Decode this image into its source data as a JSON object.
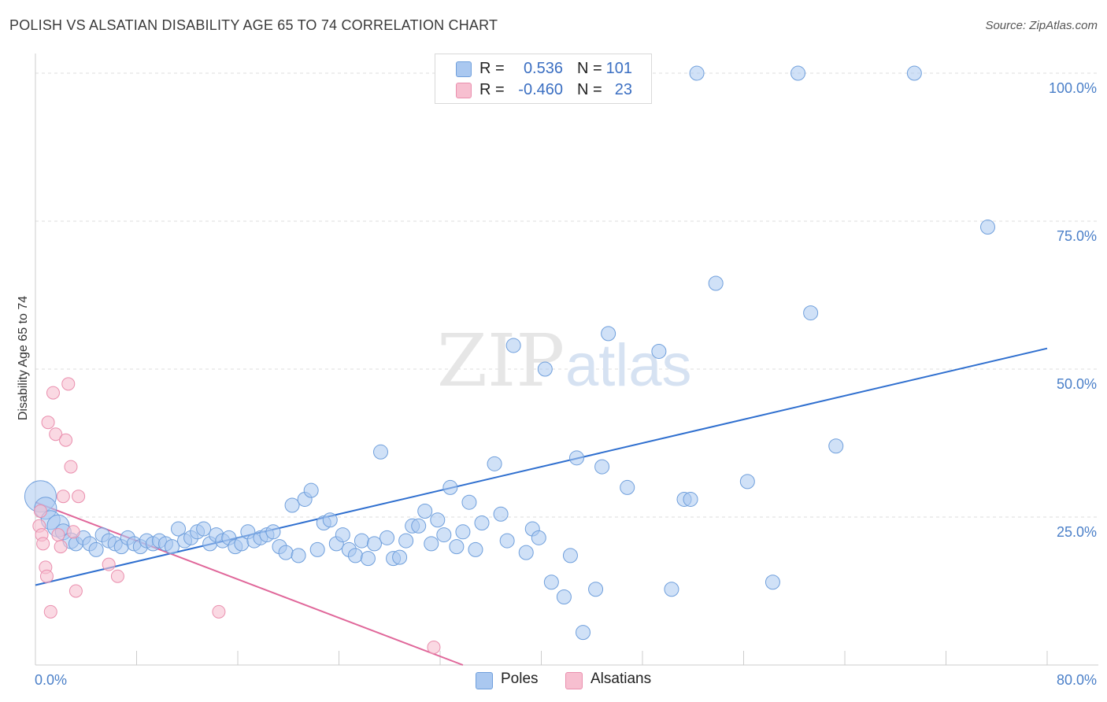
{
  "title": "POLISH VS ALSATIAN DISABILITY AGE 65 TO 74 CORRELATION CHART",
  "source": "Source: ZipAtlas.com",
  "watermark": {
    "zip": "ZIP",
    "atlas": "atlas"
  },
  "colors": {
    "poles_fill": "#aac8f0",
    "poles_stroke": "#6f9fdc",
    "poles_line": "#2f6fcf",
    "alsatians_fill": "#f7bfd0",
    "alsatians_stroke": "#ea8fae",
    "alsatians_line": "#e0679a",
    "tick_text": "#4a7fc8"
  },
  "legend": {
    "rows": [
      {
        "r_label": "R =",
        "r_value": "0.536",
        "n_label": "N =",
        "n_value": "101"
      },
      {
        "r_label": "R =",
        "r_value": "-0.460",
        "n_label": "N =",
        "n_value": "23"
      }
    ]
  },
  "bottom_legend": {
    "poles": "Poles",
    "alsatians": "Alsatians"
  },
  "chart_data": {
    "type": "scatter",
    "title": "POLISH VS ALSATIAN DISABILITY AGE 65 TO 74 CORRELATION CHART",
    "xlabel": "",
    "ylabel": "Disability Age 65 to 74",
    "xlim": [
      0,
      80
    ],
    "ylim": [
      0,
      102
    ],
    "x_tick_labels": [
      {
        "value": 0,
        "label": "0.0%"
      },
      {
        "value": 80,
        "label": "80.0%"
      }
    ],
    "y_tick_labels": [
      {
        "value": 25,
        "label": "25.0%"
      },
      {
        "value": 50,
        "label": "50.0%"
      },
      {
        "value": 75,
        "label": "75.0%"
      },
      {
        "value": 100,
        "label": "100.0%"
      }
    ],
    "grid": true,
    "legend_position": "top-center",
    "series": [
      {
        "name": "Poles",
        "r": 0.536,
        "n": 101,
        "trend": {
          "x": [
            0,
            80
          ],
          "y": [
            13.5,
            53.5
          ]
        },
        "points": [
          {
            "x": 0.4,
            "y": 28.5,
            "s": 20
          },
          {
            "x": 0.8,
            "y": 26.5,
            "s": 14
          },
          {
            "x": 1.2,
            "y": 24.5,
            "s": 12
          },
          {
            "x": 1.8,
            "y": 23.5,
            "s": 14
          },
          {
            "x": 2.2,
            "y": 22.5,
            "s": 10
          },
          {
            "x": 2.8,
            "y": 21.0,
            "s": 10
          },
          {
            "x": 3.2,
            "y": 20.5,
            "s": 9
          },
          {
            "x": 3.8,
            "y": 21.5,
            "s": 9
          },
          {
            "x": 4.3,
            "y": 20.5,
            "s": 9
          },
          {
            "x": 4.8,
            "y": 19.5,
            "s": 9
          },
          {
            "x": 5.3,
            "y": 22.0,
            "s": 9
          },
          {
            "x": 5.8,
            "y": 21.0,
            "s": 9
          },
          {
            "x": 6.3,
            "y": 20.5,
            "s": 9
          },
          {
            "x": 6.8,
            "y": 20.0,
            "s": 9
          },
          {
            "x": 7.3,
            "y": 21.5,
            "s": 9
          },
          {
            "x": 7.8,
            "y": 20.5,
            "s": 9
          },
          {
            "x": 8.3,
            "y": 20.0,
            "s": 9
          },
          {
            "x": 8.8,
            "y": 21.0,
            "s": 9
          },
          {
            "x": 9.3,
            "y": 20.5,
            "s": 9
          },
          {
            "x": 9.8,
            "y": 21.0,
            "s": 9
          },
          {
            "x": 10.3,
            "y": 20.5,
            "s": 9
          },
          {
            "x": 10.8,
            "y": 20.0,
            "s": 9
          },
          {
            "x": 11.3,
            "y": 23.0,
            "s": 9
          },
          {
            "x": 11.8,
            "y": 21.0,
            "s": 9
          },
          {
            "x": 12.3,
            "y": 21.5,
            "s": 9
          },
          {
            "x": 12.8,
            "y": 22.5,
            "s": 9
          },
          {
            "x": 13.3,
            "y": 23.0,
            "s": 9
          },
          {
            "x": 13.8,
            "y": 20.5,
            "s": 9
          },
          {
            "x": 14.3,
            "y": 22.0,
            "s": 9
          },
          {
            "x": 14.8,
            "y": 21.0,
            "s": 9
          },
          {
            "x": 15.3,
            "y": 21.5,
            "s": 9
          },
          {
            "x": 15.8,
            "y": 20.0,
            "s": 9
          },
          {
            "x": 16.3,
            "y": 20.5,
            "s": 9
          },
          {
            "x": 16.8,
            "y": 22.5,
            "s": 9
          },
          {
            "x": 17.3,
            "y": 21.0,
            "s": 9
          },
          {
            "x": 17.8,
            "y": 21.5,
            "s": 9
          },
          {
            "x": 18.3,
            "y": 22.0,
            "s": 9
          },
          {
            "x": 18.8,
            "y": 22.5,
            "s": 9
          },
          {
            "x": 19.3,
            "y": 20.0,
            "s": 9
          },
          {
            "x": 19.8,
            "y": 19.0,
            "s": 9
          },
          {
            "x": 20.3,
            "y": 27.0,
            "s": 9
          },
          {
            "x": 20.8,
            "y": 18.5,
            "s": 9
          },
          {
            "x": 21.3,
            "y": 28.0,
            "s": 9
          },
          {
            "x": 21.8,
            "y": 29.5,
            "s": 9
          },
          {
            "x": 22.3,
            "y": 19.5,
            "s": 9
          },
          {
            "x": 22.8,
            "y": 24.0,
            "s": 9
          },
          {
            "x": 23.3,
            "y": 24.5,
            "s": 9
          },
          {
            "x": 23.8,
            "y": 20.5,
            "s": 9
          },
          {
            "x": 24.3,
            "y": 22.0,
            "s": 9
          },
          {
            "x": 24.8,
            "y": 19.5,
            "s": 9
          },
          {
            "x": 25.3,
            "y": 18.5,
            "s": 9
          },
          {
            "x": 25.8,
            "y": 21.0,
            "s": 9
          },
          {
            "x": 26.3,
            "y": 18.0,
            "s": 9
          },
          {
            "x": 26.8,
            "y": 20.5,
            "s": 9
          },
          {
            "x": 27.3,
            "y": 36.0,
            "s": 9
          },
          {
            "x": 27.8,
            "y": 21.5,
            "s": 9
          },
          {
            "x": 28.3,
            "y": 18.0,
            "s": 9
          },
          {
            "x": 28.8,
            "y": 18.2,
            "s": 9
          },
          {
            "x": 29.3,
            "y": 21.0,
            "s": 9
          },
          {
            "x": 29.8,
            "y": 23.5,
            "s": 9
          },
          {
            "x": 30.3,
            "y": 23.5,
            "s": 9
          },
          {
            "x": 30.8,
            "y": 26.0,
            "s": 9
          },
          {
            "x": 31.3,
            "y": 20.5,
            "s": 9
          },
          {
            "x": 31.8,
            "y": 24.5,
            "s": 9
          },
          {
            "x": 32.3,
            "y": 22.0,
            "s": 9
          },
          {
            "x": 32.8,
            "y": 30.0,
            "s": 9
          },
          {
            "x": 33.3,
            "y": 20.0,
            "s": 9
          },
          {
            "x": 33.8,
            "y": 22.5,
            "s": 9
          },
          {
            "x": 34.3,
            "y": 27.5,
            "s": 9
          },
          {
            "x": 34.8,
            "y": 19.5,
            "s": 9
          },
          {
            "x": 35.3,
            "y": 24.0,
            "s": 9
          },
          {
            "x": 36.3,
            "y": 34.0,
            "s": 9
          },
          {
            "x": 36.8,
            "y": 25.5,
            "s": 9
          },
          {
            "x": 37.3,
            "y": 21.0,
            "s": 9
          },
          {
            "x": 37.8,
            "y": 54.0,
            "s": 9
          },
          {
            "x": 38.8,
            "y": 19.0,
            "s": 9
          },
          {
            "x": 39.3,
            "y": 23.0,
            "s": 9
          },
          {
            "x": 39.8,
            "y": 21.5,
            "s": 9
          },
          {
            "x": 40.3,
            "y": 50.0,
            "s": 9
          },
          {
            "x": 40.8,
            "y": 14.0,
            "s": 9
          },
          {
            "x": 41.8,
            "y": 11.5,
            "s": 9
          },
          {
            "x": 42.3,
            "y": 18.5,
            "s": 9
          },
          {
            "x": 42.8,
            "y": 35.0,
            "s": 9
          },
          {
            "x": 43.3,
            "y": 5.5,
            "s": 9
          },
          {
            "x": 44.3,
            "y": 12.8,
            "s": 9
          },
          {
            "x": 44.8,
            "y": 33.5,
            "s": 9
          },
          {
            "x": 45.3,
            "y": 56.0,
            "s": 9
          },
          {
            "x": 46.8,
            "y": 30.0,
            "s": 9
          },
          {
            "x": 49.3,
            "y": 53.0,
            "s": 9
          },
          {
            "x": 50.3,
            "y": 12.8,
            "s": 9
          },
          {
            "x": 51.3,
            "y": 28.0,
            "s": 9
          },
          {
            "x": 51.8,
            "y": 28.0,
            "s": 9
          },
          {
            "x": 52.3,
            "y": 100.0,
            "s": 9
          },
          {
            "x": 53.8,
            "y": 64.5,
            "s": 9
          },
          {
            "x": 58.3,
            "y": 14.0,
            "s": 9
          },
          {
            "x": 60.3,
            "y": 100.0,
            "s": 9
          },
          {
            "x": 61.3,
            "y": 59.5,
            "s": 9
          },
          {
            "x": 63.3,
            "y": 37.0,
            "s": 9
          },
          {
            "x": 69.5,
            "y": 100.0,
            "s": 9
          },
          {
            "x": 75.3,
            "y": 74.0,
            "s": 9
          },
          {
            "x": 56.3,
            "y": 31.0,
            "s": 9
          }
        ]
      },
      {
        "name": "Alsatians",
        "r": -0.46,
        "n": 23,
        "trend": {
          "x": [
            0,
            33.8
          ],
          "y": [
            27.5,
            0
          ]
        },
        "points": [
          {
            "x": 0.3,
            "y": 23.5
          },
          {
            "x": 0.5,
            "y": 22.0
          },
          {
            "x": 0.6,
            "y": 20.5
          },
          {
            "x": 0.8,
            "y": 16.5
          },
          {
            "x": 0.9,
            "y": 15.0
          },
          {
            "x": 1.0,
            "y": 41.0
          },
          {
            "x": 1.2,
            "y": 9.0
          },
          {
            "x": 1.4,
            "y": 46.0
          },
          {
            "x": 1.6,
            "y": 39.0
          },
          {
            "x": 1.8,
            "y": 22.0
          },
          {
            "x": 2.0,
            "y": 20.0
          },
          {
            "x": 2.2,
            "y": 28.5
          },
          {
            "x": 2.4,
            "y": 38.0
          },
          {
            "x": 2.6,
            "y": 47.5
          },
          {
            "x": 2.8,
            "y": 33.5
          },
          {
            "x": 3.0,
            "y": 22.5
          },
          {
            "x": 3.2,
            "y": 12.5
          },
          {
            "x": 3.4,
            "y": 28.5
          },
          {
            "x": 5.8,
            "y": 17.0
          },
          {
            "x": 6.5,
            "y": 15.0
          },
          {
            "x": 14.5,
            "y": 9.0
          },
          {
            "x": 31.5,
            "y": 3.0
          },
          {
            "x": 0.4,
            "y": 26.0
          }
        ]
      }
    ]
  }
}
